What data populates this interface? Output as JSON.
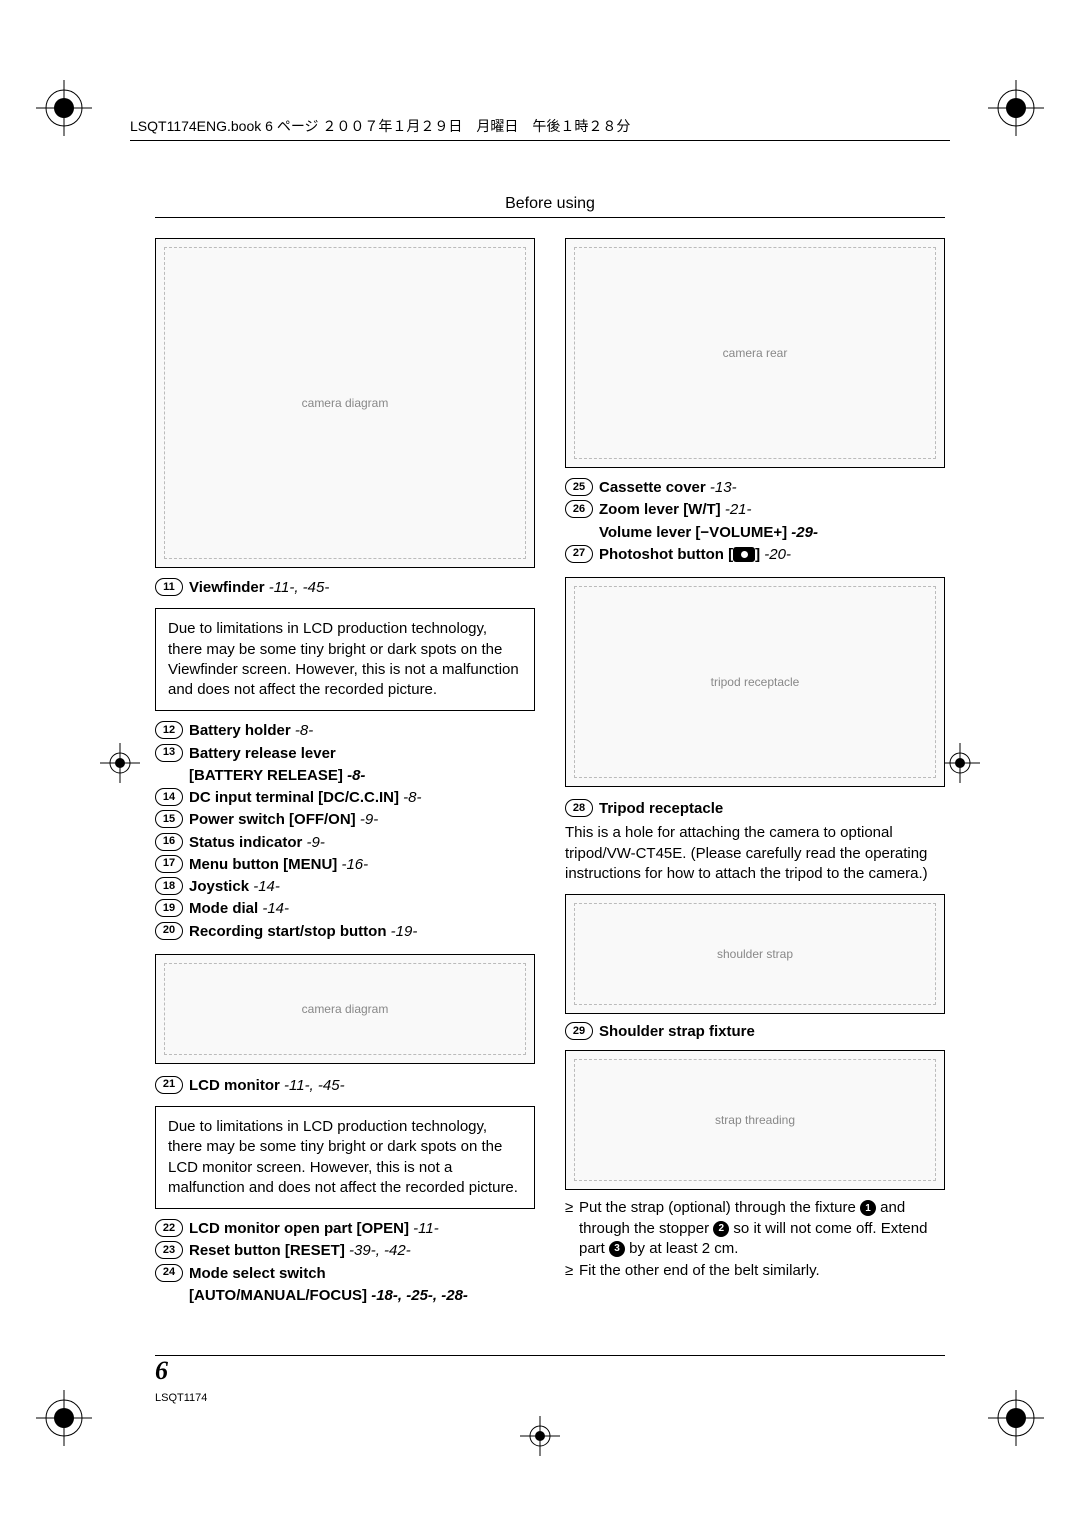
{
  "header": {
    "book_line": "LSQT1174ENG.book  6 ページ  ２００７年１月２９日　月曜日　午後１時２８分",
    "section_title": "Before using"
  },
  "left_col": {
    "items_a": [
      {
        "num": "11",
        "label": "Viewfinder",
        "ref": "-11-, -45-"
      }
    ],
    "note1": "Due to limitations in LCD production technology, there may be some tiny bright or dark spots on the Viewfinder screen. However, this is not a malfunction and does not affect the recorded picture.",
    "items_b": [
      {
        "num": "12",
        "label": "Battery holder",
        "ref": "-8-"
      },
      {
        "num": "13",
        "label": "Battery release lever",
        "ref": ""
      },
      {
        "indent": true,
        "label": "[BATTERY RELEASE]",
        "ref": "-8-"
      },
      {
        "num": "14",
        "label": "DC input terminal [DC/C.C.IN]",
        "ref": "-8-"
      },
      {
        "num": "15",
        "label": "Power switch [OFF/ON]",
        "ref": "-9-"
      },
      {
        "num": "16",
        "label": "Status indicator",
        "ref": "-9-"
      },
      {
        "num": "17",
        "label": "Menu button [MENU]",
        "ref": "-16-"
      },
      {
        "num": "18",
        "label": "Joystick",
        "ref": "-14-"
      },
      {
        "num": "19",
        "label": "Mode dial",
        "ref": "-14-"
      },
      {
        "num": "20",
        "label": "Recording start/stop button",
        "ref": "-19-"
      }
    ],
    "items_c": [
      {
        "num": "21",
        "label": "LCD monitor",
        "ref": "-11-, -45-"
      }
    ],
    "note2": "Due to limitations in LCD production technology, there may be some tiny bright or dark spots on the LCD monitor screen. However, this is not a malfunction and does not affect the recorded picture.",
    "items_d": [
      {
        "num": "22",
        "label": "LCD monitor open part [OPEN]",
        "ref": "-11-"
      },
      {
        "num": "23",
        "label": "Reset button [RESET]",
        "ref": "-39-, -42-"
      },
      {
        "num": "24",
        "label": "Mode select switch",
        "ref": ""
      },
      {
        "indent": true,
        "label": "[AUTO/MANUAL/FOCUS]",
        "ref": "-18-, -25-, -28-"
      }
    ]
  },
  "right_col": {
    "items_a": [
      {
        "num": "25",
        "label": "Cassette cover",
        "ref": "-13-"
      },
      {
        "num": "26",
        "label": "Zoom lever [W/T]",
        "ref": "-21-"
      },
      {
        "indent": true,
        "label": "Volume lever [−VOLUME+]",
        "ref": "-29-"
      },
      {
        "num": "27",
        "label_pre": "Photoshot button [",
        "label_post": "]",
        "icon": true,
        "ref": "-20-"
      }
    ],
    "items_b": [
      {
        "num": "28",
        "label": "Tripod receptacle",
        "ref": ""
      }
    ],
    "tripod_text": "This is a hole for attaching the camera to optional tripod/VW-CT45E. (Please carefully read the operating instructions for how to attach the tripod to the camera.)",
    "items_c": [
      {
        "num": "29",
        "label": "Shoulder strap fixture",
        "ref": ""
      }
    ],
    "bullets": [
      {
        "text_parts": [
          "Put the strap (optional) through the fixture ",
          {
            "n": "1"
          },
          " and through the stopper ",
          {
            "n": "2"
          },
          " so it will not come off. Extend part ",
          {
            "n": "3"
          },
          " by at least 2 cm."
        ]
      },
      {
        "text_parts": [
          "Fit the other end of the belt similarly."
        ]
      }
    ]
  },
  "footer": {
    "page_number": "6",
    "doc_code": "LSQT1174"
  },
  "diagram_labels": {
    "d1": "camera diagram",
    "d2": "camera diagram",
    "d3": "camera rear",
    "d4": "tripod receptacle",
    "d5": "shoulder strap",
    "d6": "strap threading"
  }
}
